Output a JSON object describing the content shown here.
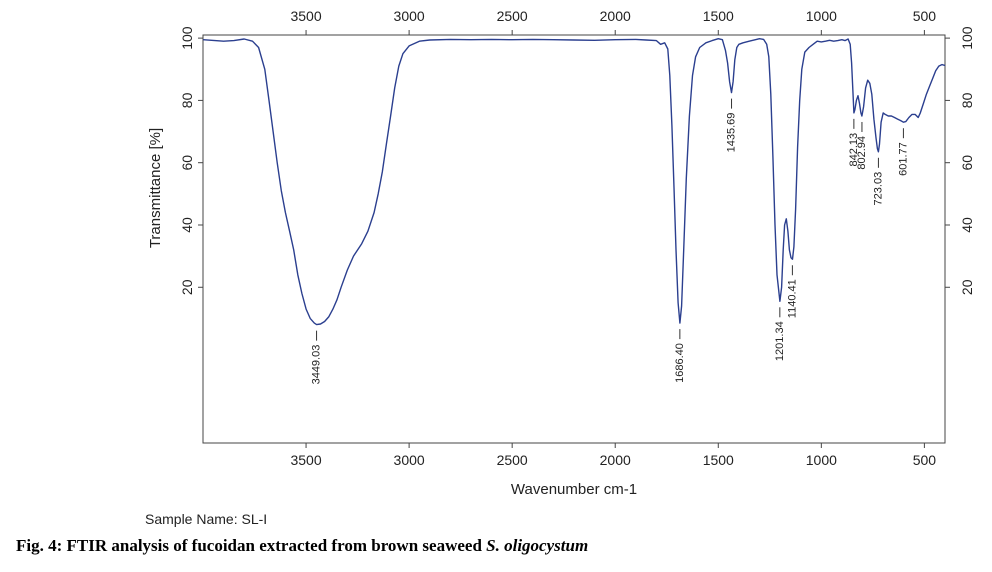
{
  "chart_data": {
    "type": "line",
    "xlabel": "Wavenumber cm-1",
    "ylabel": "Transmittance [%]",
    "xlim": [
      4000,
      400
    ],
    "x_reversed": true,
    "ylim": [
      -30,
      101
    ],
    "x_ticks": [
      3500,
      3000,
      2500,
      2000,
      1500,
      1000,
      500
    ],
    "y_ticks": [
      20,
      40,
      60,
      80,
      100
    ],
    "grid": false,
    "line_color": "#2b3f8f",
    "series": [
      {
        "points": [
          [
            4000,
            99.5
          ],
          [
            3900,
            99.0
          ],
          [
            3850,
            99.2
          ],
          [
            3800,
            99.7
          ],
          [
            3760,
            99.0
          ],
          [
            3730,
            97.0
          ],
          [
            3700,
            90.0
          ],
          [
            3680,
            80.0
          ],
          [
            3660,
            70.0
          ],
          [
            3640,
            60.0
          ],
          [
            3620,
            51.0
          ],
          [
            3600,
            44.0
          ],
          [
            3580,
            38.0
          ],
          [
            3560,
            32.0
          ],
          [
            3540,
            24.0
          ],
          [
            3520,
            18.0
          ],
          [
            3500,
            13.0
          ],
          [
            3480,
            10.0
          ],
          [
            3460,
            8.5
          ],
          [
            3449,
            8.0
          ],
          [
            3430,
            8.2
          ],
          [
            3410,
            9.0
          ],
          [
            3390,
            10.5
          ],
          [
            3370,
            13.0
          ],
          [
            3350,
            16.0
          ],
          [
            3330,
            20.0
          ],
          [
            3300,
            25.5
          ],
          [
            3270,
            30.0
          ],
          [
            3230,
            34.0
          ],
          [
            3200,
            38.0
          ],
          [
            3170,
            44.0
          ],
          [
            3150,
            50.0
          ],
          [
            3130,
            57.0
          ],
          [
            3110,
            66.0
          ],
          [
            3090,
            75.0
          ],
          [
            3070,
            84.0
          ],
          [
            3050,
            91.0
          ],
          [
            3030,
            95.0
          ],
          [
            3000,
            97.5
          ],
          [
            2950,
            99.0
          ],
          [
            2900,
            99.4
          ],
          [
            2800,
            99.6
          ],
          [
            2700,
            99.5
          ],
          [
            2600,
            99.6
          ],
          [
            2500,
            99.5
          ],
          [
            2400,
            99.6
          ],
          [
            2300,
            99.5
          ],
          [
            2200,
            99.4
          ],
          [
            2100,
            99.3
          ],
          [
            2000,
            99.5
          ],
          [
            1900,
            99.6
          ],
          [
            1850,
            99.4
          ],
          [
            1800,
            99.2
          ],
          [
            1780,
            98.0
          ],
          [
            1760,
            98.5
          ],
          [
            1745,
            96.5
          ],
          [
            1735,
            88.0
          ],
          [
            1725,
            72.0
          ],
          [
            1715,
            52.0
          ],
          [
            1705,
            32.0
          ],
          [
            1695,
            15.0
          ],
          [
            1686,
            8.5
          ],
          [
            1678,
            14.0
          ],
          [
            1668,
            32.0
          ],
          [
            1655,
            55.0
          ],
          [
            1640,
            75.0
          ],
          [
            1625,
            88.0
          ],
          [
            1610,
            94.0
          ],
          [
            1590,
            97.0
          ],
          [
            1560,
            98.5
          ],
          [
            1530,
            99.2
          ],
          [
            1500,
            99.8
          ],
          [
            1480,
            99.5
          ],
          [
            1465,
            96.0
          ],
          [
            1455,
            92.0
          ],
          [
            1445,
            86.0
          ],
          [
            1436,
            82.5
          ],
          [
            1428,
            86.0
          ],
          [
            1420,
            93.0
          ],
          [
            1410,
            97.0
          ],
          [
            1400,
            98.0
          ],
          [
            1380,
            98.5
          ],
          [
            1350,
            99.0
          ],
          [
            1320,
            99.5
          ],
          [
            1300,
            99.8
          ],
          [
            1280,
            99.6
          ],
          [
            1265,
            98.0
          ],
          [
            1255,
            94.0
          ],
          [
            1245,
            82.0
          ],
          [
            1235,
            62.0
          ],
          [
            1225,
            40.0
          ],
          [
            1215,
            24.0
          ],
          [
            1201,
            15.5
          ],
          [
            1193,
            20.0
          ],
          [
            1185,
            32.0
          ],
          [
            1178,
            40.0
          ],
          [
            1170,
            42.0
          ],
          [
            1162,
            38.0
          ],
          [
            1155,
            32.0
          ],
          [
            1147,
            29.5
          ],
          [
            1140,
            29.0
          ],
          [
            1133,
            33.0
          ],
          [
            1125,
            45.0
          ],
          [
            1115,
            65.0
          ],
          [
            1105,
            80.0
          ],
          [
            1095,
            90.0
          ],
          [
            1080,
            95.5
          ],
          [
            1060,
            97.0
          ],
          [
            1040,
            98.0
          ],
          [
            1020,
            99.0
          ],
          [
            1000,
            98.8
          ],
          [
            980,
            99.0
          ],
          [
            960,
            99.3
          ],
          [
            940,
            99.0
          ],
          [
            920,
            99.2
          ],
          [
            900,
            99.5
          ],
          [
            885,
            99.2
          ],
          [
            870,
            99.7
          ],
          [
            860,
            98.0
          ],
          [
            853,
            92.0
          ],
          [
            847,
            83.0
          ],
          [
            842,
            76.0
          ],
          [
            837,
            77.0
          ],
          [
            830,
            80.0
          ],
          [
            822,
            81.5
          ],
          [
            815,
            79.0
          ],
          [
            808,
            76.0
          ],
          [
            803,
            75.0
          ],
          [
            795,
            78.0
          ],
          [
            785,
            84.0
          ],
          [
            775,
            86.5
          ],
          [
            765,
            85.5
          ],
          [
            755,
            82.0
          ],
          [
            745,
            74.0
          ],
          [
            735,
            68.0
          ],
          [
            728,
            64.5
          ],
          [
            723,
            63.5
          ],
          [
            718,
            66.0
          ],
          [
            710,
            73.0
          ],
          [
            700,
            76.0
          ],
          [
            690,
            75.5
          ],
          [
            675,
            75.0
          ],
          [
            660,
            75.0
          ],
          [
            645,
            74.5
          ],
          [
            630,
            74.0
          ],
          [
            615,
            73.5
          ],
          [
            602,
            73.0
          ],
          [
            590,
            73.2
          ],
          [
            575,
            74.5
          ],
          [
            560,
            75.5
          ],
          [
            545,
            75.5
          ],
          [
            530,
            74.5
          ],
          [
            520,
            76.0
          ],
          [
            505,
            79.0
          ],
          [
            490,
            82.0
          ],
          [
            475,
            84.5
          ],
          [
            460,
            87.0
          ],
          [
            445,
            89.5
          ],
          [
            430,
            91.0
          ],
          [
            415,
            91.5
          ],
          [
            400,
            91.2
          ]
        ]
      }
    ],
    "peaks": [
      {
        "x": 3449.03,
        "y": 8.0,
        "label": "3449.03"
      },
      {
        "x": 1686.4,
        "y": 8.5,
        "label": "1686.40"
      },
      {
        "x": 1435.69,
        "y": 82.5,
        "label": "1435.69"
      },
      {
        "x": 1201.34,
        "y": 15.5,
        "label": "1201.34"
      },
      {
        "x": 1140.41,
        "y": 29.0,
        "label": "1140.41"
      },
      {
        "x": 842.13,
        "y": 76.0,
        "label": "842.13"
      },
      {
        "x": 802.94,
        "y": 75.0,
        "label": "802.94"
      },
      {
        "x": 723.03,
        "y": 63.5,
        "label": "723.03"
      },
      {
        "x": 601.77,
        "y": 73.0,
        "label": "601.77"
      }
    ]
  },
  "sample": {
    "label": "Sample Name: SL-I"
  },
  "caption": {
    "prefix": "Fig. 4: FTIR analysis of fucoidan extracted from brown seaweed ",
    "species": "S. oligocystum"
  }
}
